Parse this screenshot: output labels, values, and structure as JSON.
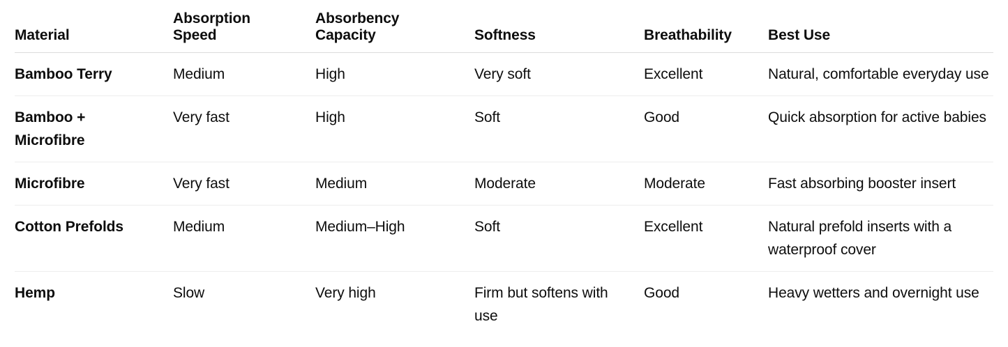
{
  "chart_data": {
    "type": "table",
    "columns": [
      "Material",
      "Absorption Speed",
      "Absorbency Capacity",
      "Softness",
      "Breathability",
      "Best Use"
    ],
    "rows": [
      [
        "Bamboo Terry",
        "Medium",
        "High",
        "Very soft",
        "Excellent",
        "Natural, comfortable everyday use"
      ],
      [
        "Bamboo + Microfibre",
        "Very fast",
        "High",
        "Soft",
        "Good",
        "Quick absorption for active babies"
      ],
      [
        "Microfibre",
        "Very fast",
        "Medium",
        "Moderate",
        "Moderate",
        "Fast absorbing booster insert"
      ],
      [
        "Cotton Prefolds",
        "Medium",
        "Medium–High",
        "Soft",
        "Excellent",
        "Natural prefold inserts with a waterproof cover"
      ],
      [
        "Hemp",
        "Slow",
        "Very high",
        "Firm but softens with use",
        "Good",
        "Heavy wetters and overnight use"
      ]
    ]
  },
  "colors": {
    "text": "#0d0d0d",
    "background": "#ffffff",
    "header_border": "#dcdcdc",
    "row_border": "#ededed"
  }
}
